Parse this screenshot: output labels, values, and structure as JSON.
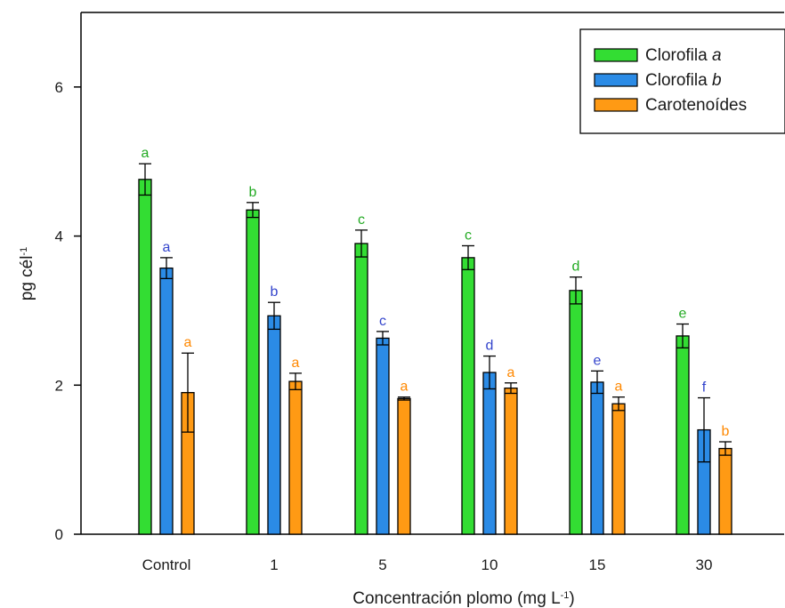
{
  "chart_data": {
    "type": "bar",
    "categories": [
      "Control",
      "1",
      "5",
      "10",
      "15",
      "30"
    ],
    "series": [
      {
        "name": "Clorofila",
        "name_italic": "a",
        "color": "#33dd33",
        "label_color": "#22aa22",
        "values": [
          4.76,
          4.35,
          3.9,
          3.71,
          3.27,
          2.66
        ],
        "errors": [
          0.21,
          0.1,
          0.18,
          0.16,
          0.18,
          0.16
        ],
        "letters": [
          "a",
          "b",
          "c",
          "c",
          "d",
          "e"
        ]
      },
      {
        "name": "Clorofila",
        "name_italic": "b",
        "color": "#2b8be6",
        "label_color": "#3344cc",
        "values": [
          3.57,
          2.93,
          2.63,
          2.17,
          2.04,
          1.4
        ],
        "errors": [
          0.14,
          0.18,
          0.09,
          0.22,
          0.15,
          0.43
        ],
        "letters": [
          "a",
          "b",
          "c",
          "d",
          "e",
          "f"
        ]
      },
      {
        "name": "Carotenoídes",
        "name_italic": "",
        "color": "#ff9a14",
        "label_color": "#ff8800",
        "values": [
          1.9,
          2.05,
          1.82,
          1.96,
          1.75,
          1.15
        ],
        "errors": [
          0.53,
          0.11,
          0.02,
          0.07,
          0.09,
          0.09
        ],
        "letters": [
          "a",
          "a",
          "a",
          "a",
          "a",
          "b"
        ]
      }
    ],
    "ylabel": "pg cél",
    "ylabel_sup": "-1",
    "xlabel": "Concentración  plomo (mg L",
    "xlabel_sup": "-1",
    "xlabel_end": ")",
    "ylim": [
      0,
      7
    ],
    "yticks": [
      0,
      2,
      4,
      6
    ],
    "legend_position": "top-right"
  }
}
